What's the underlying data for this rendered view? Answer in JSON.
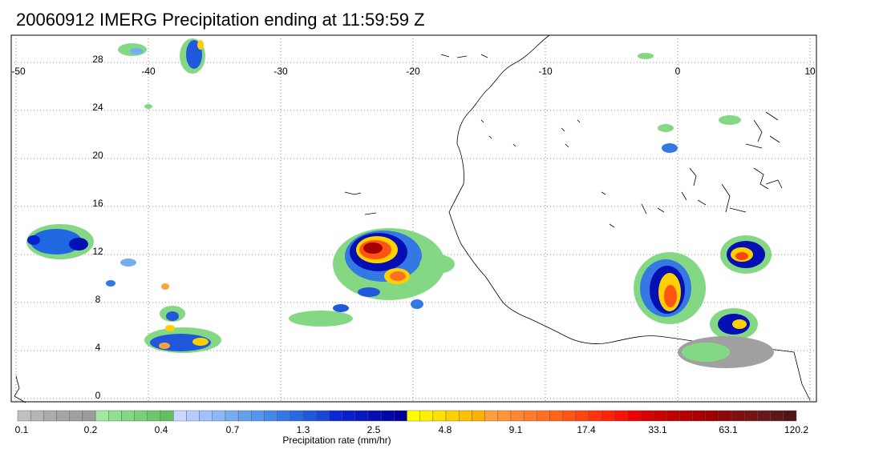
{
  "title": "20060912 IMERG Precipitation ending at 11:59:59 Z",
  "map": {
    "lon_labels": [
      "-50",
      "-40",
      "-30",
      "-20",
      "-10",
      "0",
      "10"
    ],
    "lat_labels": [
      "28",
      "24",
      "20",
      "16",
      "12",
      "8",
      "4",
      "0"
    ],
    "grid": "dotted"
  },
  "colorbar": {
    "title": "Precipitation rate (mm/hr)",
    "tick_labels": [
      "0.1",
      "0.2",
      "0.4",
      "0.7",
      "1.3",
      "2.5",
      "4.8",
      "9.1",
      "17.4",
      "33.1",
      "63.1",
      "120.2"
    ],
    "colors": [
      "#c0c0c0",
      "#b5b5b5",
      "#ababab",
      "#a5a5a5",
      "#a0a0a0",
      "#9b9b9b",
      "#a0e8a0",
      "#90e090",
      "#84d884",
      "#78d078",
      "#6cc86c",
      "#60c060",
      "#c8d8ff",
      "#b4ccff",
      "#a0c0ff",
      "#8cb8f8",
      "#78acf0",
      "#64a0ec",
      "#5496ec",
      "#4488e8",
      "#3478e4",
      "#2868e0",
      "#2058dc",
      "#1848d8",
      "#0a28d8",
      "#0820cc",
      "#0618c0",
      "#0410b4",
      "#0208a8",
      "#00009c",
      "#ffff00",
      "#fff000",
      "#ffe000",
      "#ffd000",
      "#ffc000",
      "#ffb000",
      "#ffa040",
      "#ff9438",
      "#ff8830",
      "#ff7c28",
      "#ff7020",
      "#ff6418",
      "#ff5414",
      "#ff4410",
      "#ff340c",
      "#ff2408",
      "#f81404",
      "#f00000",
      "#d80000",
      "#cc0000",
      "#c00000",
      "#b40000",
      "#a80000",
      "#9c0000",
      "#8c0808",
      "#801010",
      "#741414",
      "#681818",
      "#5c1818",
      "#501414"
    ]
  }
}
